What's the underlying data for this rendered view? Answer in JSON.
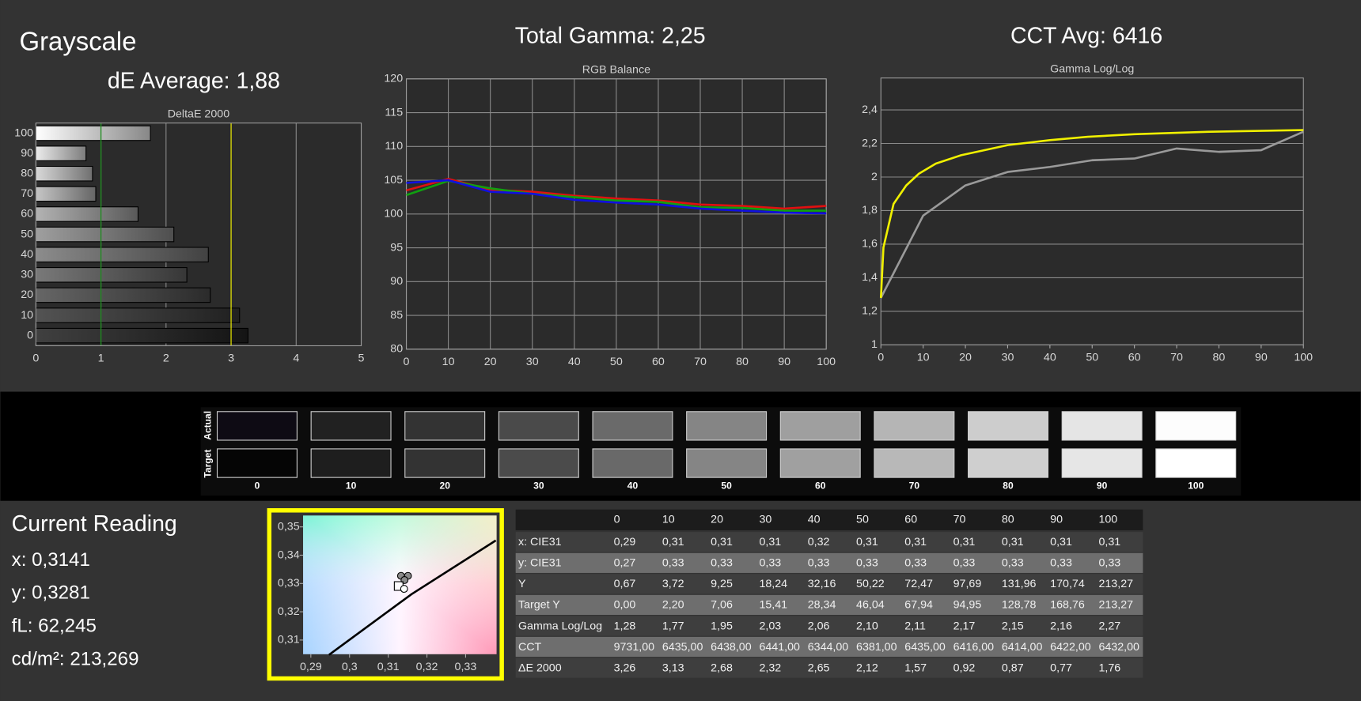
{
  "header": {
    "title": "Grayscale",
    "de_average": "dE Average: 1,88",
    "total_gamma": "Total Gamma: 2,25",
    "cct_avg": "CCT Avg: 6416"
  },
  "chart_data": [
    {
      "type": "bar",
      "orientation": "horizontal",
      "title": "DeltaE 2000",
      "categories": [
        "100",
        "90",
        "80",
        "70",
        "60",
        "50",
        "40",
        "30",
        "20",
        "10",
        "0"
      ],
      "values": [
        1.76,
        0.77,
        0.87,
        0.92,
        1.57,
        2.12,
        2.65,
        2.32,
        2.68,
        3.13,
        3.26
      ],
      "xlim": [
        0,
        5
      ],
      "xticks": [
        0,
        1,
        2,
        3,
        4,
        5
      ],
      "grid": "x",
      "reference_lines": [
        {
          "value": 1,
          "color": "#1e8c1e"
        },
        {
          "value": 3,
          "color": "#d8d800"
        }
      ]
    },
    {
      "type": "line",
      "title": "RGB Balance",
      "x": [
        0,
        10,
        20,
        30,
        40,
        50,
        60,
        70,
        80,
        90,
        100
      ],
      "series": [
        {
          "color": "#e01010",
          "values": [
            103.5,
            105.2,
            103.6,
            103.3,
            102.7,
            102.3,
            102.0,
            101.4,
            101.2,
            100.8,
            101.2
          ]
        },
        {
          "color": "#10a010",
          "values": [
            102.8,
            104.9,
            103.8,
            103.0,
            102.5,
            102.0,
            101.8,
            101.0,
            100.9,
            100.5,
            100.5
          ]
        },
        {
          "color": "#1010e0",
          "values": [
            104.6,
            105.0,
            103.3,
            103.0,
            102.1,
            101.7,
            101.4,
            100.8,
            100.5,
            100.2,
            100.1
          ]
        }
      ],
      "xlim": [
        0,
        100
      ],
      "xticks": [
        0,
        10,
        20,
        30,
        40,
        50,
        60,
        70,
        80,
        90,
        100
      ],
      "ylim": [
        80,
        120
      ],
      "yticks": [
        80,
        85,
        90,
        95,
        100,
        105,
        110,
        115,
        120
      ],
      "grid": "both"
    },
    {
      "type": "line",
      "title": "Gamma Log/Log",
      "x": [
        0,
        10,
        20,
        30,
        40,
        50,
        60,
        70,
        80,
        90,
        100
      ],
      "series": [
        {
          "color": "#9a9a9a",
          "values": [
            1.28,
            1.77,
            1.95,
            2.03,
            2.06,
            2.1,
            2.11,
            2.17,
            2.15,
            2.16,
            2.27
          ]
        },
        {
          "color": "#f0f000",
          "x": [
            0,
            0.6,
            3,
            6,
            9,
            13,
            19,
            30,
            40,
            49,
            60,
            78,
            100
          ],
          "values": [
            1.28,
            1.58,
            1.84,
            1.95,
            2.02,
            2.08,
            2.13,
            2.19,
            2.22,
            2.24,
            2.255,
            2.27,
            2.28
          ]
        }
      ],
      "xlim": [
        0,
        100
      ],
      "xticks": [
        0,
        10,
        20,
        30,
        40,
        50,
        60,
        70,
        80,
        90,
        100
      ],
      "ylim": [
        1,
        2.59
      ],
      "yticks": [
        1,
        {
          "value": 1.2,
          "label": "1,2"
        },
        {
          "value": 1.4,
          "label": "1,4"
        },
        {
          "value": 1.6,
          "label": "1,6"
        },
        {
          "value": 1.8,
          "label": "1,8"
        },
        2,
        {
          "value": 2.2,
          "label": "2,2"
        },
        {
          "value": 2.4,
          "label": "2,4"
        }
      ],
      "grid": "y"
    },
    {
      "type": "scatter",
      "series": [
        {
          "color": "#8a8a8a",
          "marker": "circle",
          "x": [
            0.3133,
            0.3151,
            0.3142
          ],
          "values": [
            0.3327,
            0.3327,
            0.3312
          ]
        },
        {
          "color": "#ffffff",
          "marker": "square",
          "x": [
            0.3127
          ],
          "values": [
            0.3291
          ]
        },
        {
          "color": "#ffffff",
          "marker": "circle",
          "x": [
            0.3141
          ],
          "values": [
            0.3281
          ]
        },
        {
          "color": "#000000",
          "marker": "line",
          "x": [
            0.2947,
            0.316,
            0.3378
          ],
          "values": [
            0.3048,
            0.3262,
            0.3452
          ]
        }
      ],
      "xlim": [
        0.288,
        0.338
      ],
      "xticks": [
        {
          "value": 0.29,
          "label": "0,29"
        },
        {
          "value": 0.3,
          "label": "0,3"
        },
        {
          "value": 0.31,
          "label": "0,31"
        },
        {
          "value": 0.32,
          "label": "0,32"
        },
        {
          "value": 0.33,
          "label": "0,33"
        }
      ],
      "ylim": [
        0.305,
        0.354
      ],
      "yticks": [
        {
          "value": 0.31,
          "label": "0,31"
        },
        {
          "value": 0.32,
          "label": "0,32"
        },
        {
          "value": 0.33,
          "label": "0,33"
        },
        {
          "value": 0.34,
          "label": "0,34"
        },
        {
          "value": 0.35,
          "label": "0,35"
        }
      ],
      "grid": "none"
    }
  ],
  "swatches": {
    "row_labels": [
      "Actual",
      "Target"
    ],
    "labels": [
      "0",
      "10",
      "20",
      "30",
      "40",
      "50",
      "60",
      "70",
      "80",
      "90",
      "100"
    ],
    "actual": [
      "#0e0b14",
      "#212121",
      "#333333",
      "#4a4a4a",
      "#6a6a6a",
      "#858585",
      "#9f9f9f",
      "#b5b5b5",
      "#cdcdcd",
      "#e5e5e5",
      "#fdfdfd"
    ],
    "target": [
      "#050505",
      "#1e1e1e",
      "#333333",
      "#4b4b4b",
      "#696969",
      "#858585",
      "#a0a0a0",
      "#b8b8b8",
      "#cfcfcf",
      "#e6e6e6",
      "#ffffff"
    ]
  },
  "current_reading": {
    "title": "Current Reading",
    "lines": [
      "x: 0,3141",
      "y: 0,3281",
      "fL: 62,245",
      "cd/m²: 213,269"
    ]
  },
  "table": {
    "columns": [
      "0",
      "10",
      "20",
      "30",
      "40",
      "50",
      "60",
      "70",
      "80",
      "90",
      "100"
    ],
    "rows": [
      [
        "x: CIE31",
        "0,29",
        "0,31",
        "0,31",
        "0,31",
        "0,32",
        "0,31",
        "0,31",
        "0,31",
        "0,31",
        "0,31",
        "0,31"
      ],
      [
        "y: CIE31",
        "0,27",
        "0,33",
        "0,33",
        "0,33",
        "0,33",
        "0,33",
        "0,33",
        "0,33",
        "0,33",
        "0,33",
        "0,33"
      ],
      [
        "Y",
        "0,67",
        "3,72",
        "9,25",
        "18,24",
        "32,16",
        "50,22",
        "72,47",
        "97,69",
        "131,96",
        "170,74",
        "213,27"
      ],
      [
        "Target Y",
        "0,00",
        "2,20",
        "7,06",
        "15,41",
        "28,34",
        "46,04",
        "67,94",
        "94,95",
        "128,78",
        "168,76",
        "213,27"
      ],
      [
        "Gamma Log/Log",
        "1,28",
        "1,77",
        "1,95",
        "2,03",
        "2,06",
        "2,10",
        "2,11",
        "2,17",
        "2,15",
        "2,16",
        "2,27"
      ],
      [
        "CCT",
        "9731,00",
        "6435,00",
        "6438,00",
        "6441,00",
        "6344,00",
        "6381,00",
        "6435,00",
        "6416,00",
        "6414,00",
        "6422,00",
        "6432,00"
      ],
      [
        "ΔE 2000",
        "3,26",
        "3,13",
        "2,68",
        "2,32",
        "2,65",
        "2,12",
        "1,57",
        "0,92",
        "0,87",
        "0,77",
        "1,76"
      ]
    ]
  }
}
